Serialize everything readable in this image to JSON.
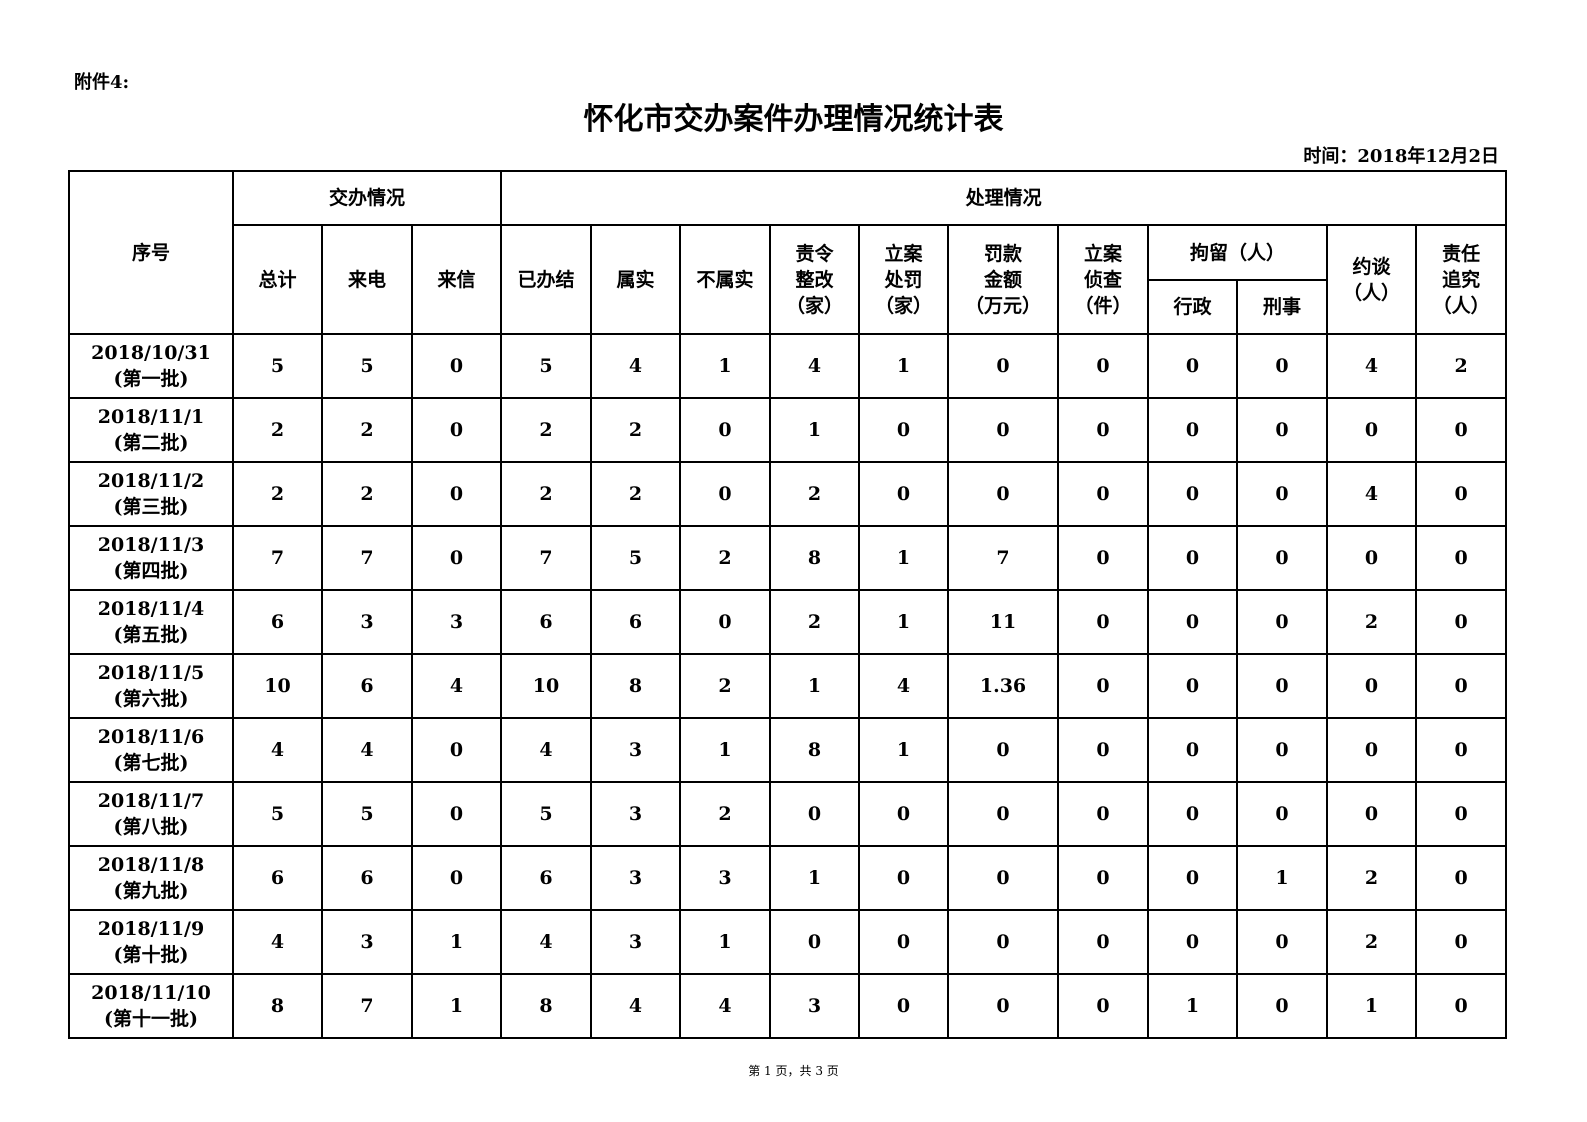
{
  "attachment": "附件4:",
  "title": "怀化市交办案件办理情况统计表",
  "date": "时间：2018年12月2日",
  "headers": {
    "seq": "序号",
    "assigned": "交办情况",
    "handled": "处理情况",
    "total": "总计",
    "call": "来电",
    "letter": "来信",
    "done": "已办结",
    "true": "属实",
    "false": "不属实",
    "rectify": "责令\n整改\n（家）",
    "penalty": "立案\n处罚\n（家）",
    "fine": "罚款\n金额\n（万元）",
    "investigate": "立案\n侦查\n（件）",
    "detain": "拘留（人）",
    "admin": "行政",
    "criminal": "刑事",
    "talk": "约谈\n（人）",
    "account": "责任\n追究\n（人）"
  },
  "rows": [
    {
      "date": "2018/10/31",
      "batch": "(第一批)",
      "values": [
        "5",
        "5",
        "0",
        "5",
        "4",
        "1",
        "4",
        "1",
        "0",
        "0",
        "0",
        "0",
        "4",
        "2"
      ]
    },
    {
      "date": "2018/11/1",
      "batch": "(第二批)",
      "values": [
        "2",
        "2",
        "0",
        "2",
        "2",
        "0",
        "1",
        "0",
        "0",
        "0",
        "0",
        "0",
        "0",
        "0"
      ]
    },
    {
      "date": "2018/11/2",
      "batch": "(第三批)",
      "values": [
        "2",
        "2",
        "0",
        "2",
        "2",
        "0",
        "2",
        "0",
        "0",
        "0",
        "0",
        "0",
        "4",
        "0"
      ]
    },
    {
      "date": "2018/11/3",
      "batch": "(第四批)",
      "values": [
        "7",
        "7",
        "0",
        "7",
        "5",
        "2",
        "8",
        "1",
        "7",
        "0",
        "0",
        "0",
        "0",
        "0"
      ]
    },
    {
      "date": "2018/11/4",
      "batch": "(第五批)",
      "values": [
        "6",
        "3",
        "3",
        "6",
        "6",
        "0",
        "2",
        "1",
        "11",
        "0",
        "0",
        "0",
        "2",
        "0"
      ]
    },
    {
      "date": "2018/11/5",
      "batch": "(第六批)",
      "values": [
        "10",
        "6",
        "4",
        "10",
        "8",
        "2",
        "1",
        "4",
        "1.36",
        "0",
        "0",
        "0",
        "0",
        "0"
      ]
    },
    {
      "date": "2018/11/6",
      "batch": "(第七批)",
      "values": [
        "4",
        "4",
        "0",
        "4",
        "3",
        "1",
        "8",
        "1",
        "0",
        "0",
        "0",
        "0",
        "0",
        "0"
      ]
    },
    {
      "date": "2018/11/7",
      "batch": "(第八批)",
      "values": [
        "5",
        "5",
        "0",
        "5",
        "3",
        "2",
        "0",
        "0",
        "0",
        "0",
        "0",
        "0",
        "0",
        "0"
      ]
    },
    {
      "date": "2018/11/8",
      "batch": "(第九批)",
      "values": [
        "6",
        "6",
        "0",
        "6",
        "3",
        "3",
        "1",
        "0",
        "0",
        "0",
        "0",
        "1",
        "2",
        "0"
      ]
    },
    {
      "date": "2018/11/9",
      "batch": "(第十批)",
      "values": [
        "4",
        "3",
        "1",
        "4",
        "3",
        "1",
        "0",
        "0",
        "0",
        "0",
        "0",
        "0",
        "2",
        "0"
      ]
    },
    {
      "date": "2018/11/10",
      "batch": "(第十一批)",
      "values": [
        "8",
        "7",
        "1",
        "8",
        "4",
        "4",
        "3",
        "0",
        "0",
        "0",
        "1",
        "0",
        "1",
        "0"
      ]
    }
  ],
  "footer": "第 1 页，共 3 页"
}
